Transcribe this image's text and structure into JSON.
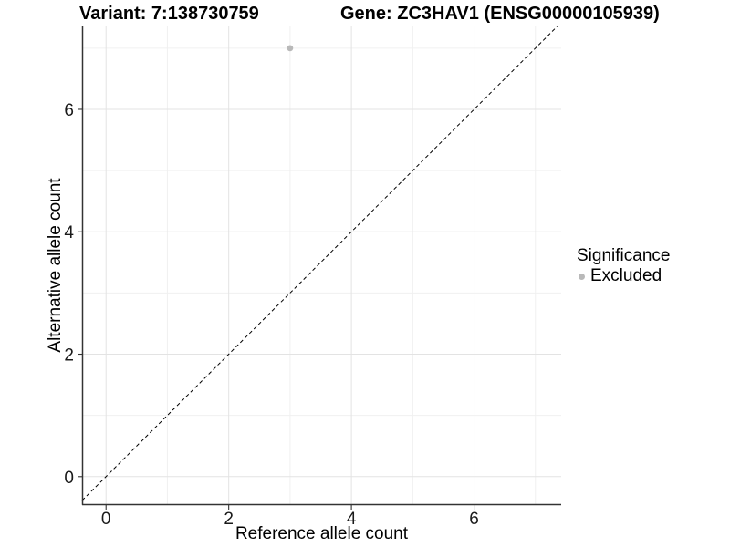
{
  "chart_data": {
    "type": "scatter",
    "title_left": "Variant: 7:138730759",
    "title_right": "Gene: ZC3HAV1 (ENSG00000105939)",
    "xlabel": "Reference allele count",
    "ylabel": "Alternative allele count",
    "xlim": [
      -0.39,
      7.42
    ],
    "ylim": [
      -0.45,
      7.37
    ],
    "x_major_ticks": [
      0,
      2,
      4,
      6
    ],
    "y_major_ticks": [
      0,
      2,
      4,
      6
    ],
    "x_minor_ticks": [
      1,
      3,
      5,
      7
    ],
    "y_minor_ticks": [
      1,
      3,
      5,
      7
    ],
    "grid": true,
    "identity_line": {
      "style": "dashed",
      "slope": 1,
      "intercept": 0,
      "color": "#000000"
    },
    "series": [
      {
        "name": "Excluded",
        "color": "#b9b9b9",
        "points": [
          [
            3,
            7
          ]
        ]
      }
    ],
    "legend": {
      "title": "Significance",
      "position": "right",
      "entries": [
        {
          "label": "Excluded",
          "color": "#b9b9b9"
        }
      ]
    },
    "colors": {
      "axis_line": "#333333",
      "tick_label": "#1a1a1a",
      "grid_major": "#e3e3e3",
      "grid_minor": "#f0f0f0",
      "background": "#ffffff"
    }
  }
}
